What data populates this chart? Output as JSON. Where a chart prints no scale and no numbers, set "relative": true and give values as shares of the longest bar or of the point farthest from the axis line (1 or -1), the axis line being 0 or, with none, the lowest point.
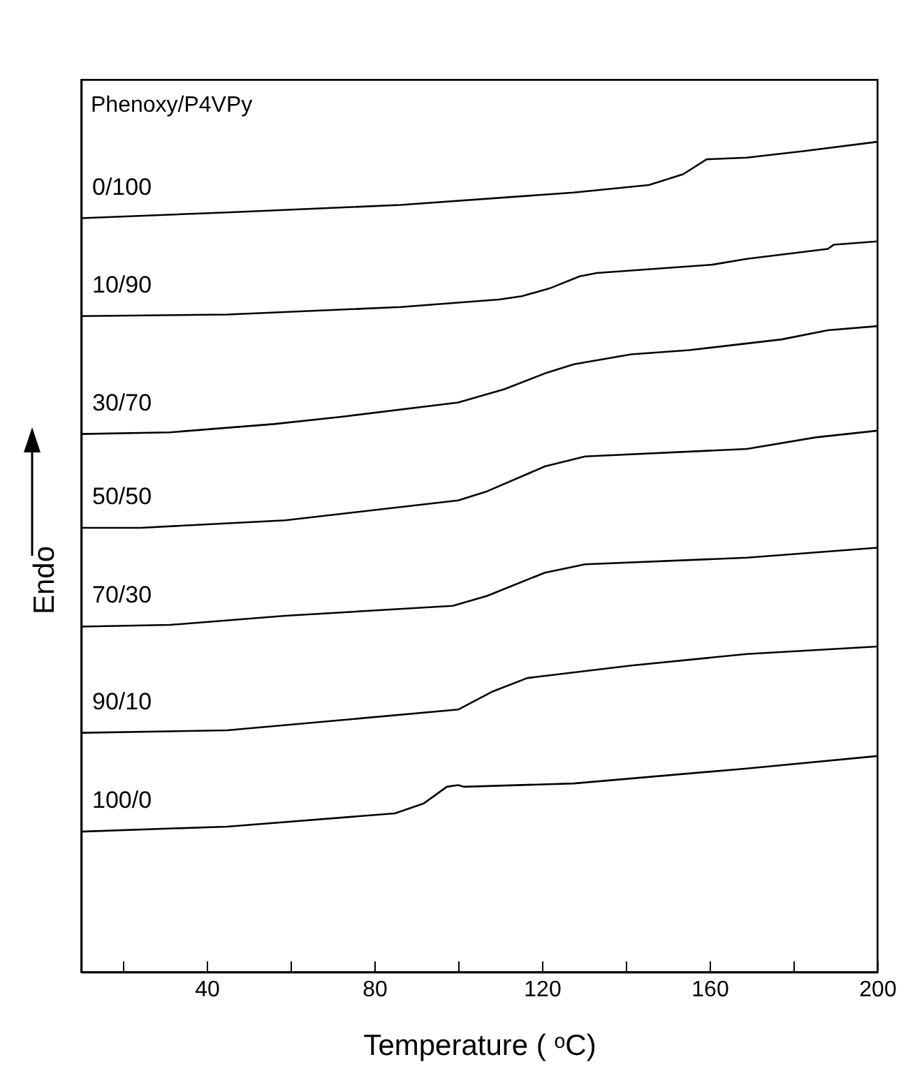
{
  "chart_data": {
    "type": "line",
    "relative": true,
    "xlabel": "Temperature ( ᵒC)",
    "ylabel": "Endo",
    "annotations": [
      "Phenoxy/P4VPy"
    ],
    "xlim": [
      10,
      200
    ],
    "xticks": [
      {
        "value": 20,
        "label": null
      },
      40,
      {
        "value": 60,
        "label": null
      },
      80,
      {
        "value": 100,
        "label": null
      },
      120,
      {
        "value": 140,
        "label": null
      },
      160,
      {
        "value": 180,
        "label": null
      },
      200
    ],
    "grid": false,
    "legend": false,
    "marker": "none",
    "line_style": "solid",
    "series": [
      {
        "name": "0/100",
        "color": "#000000",
        "x": [
          10,
          44.9,
          86.3,
          127.6,
          145.5,
          153.7,
          159.3,
          168.9,
          182.7,
          200
        ],
        "values": [
          0.908,
          0.915,
          0.924,
          0.939,
          0.948,
          0.961,
          0.979,
          0.981,
          0.989,
          1
        ]
      },
      {
        "name": "10/90",
        "color": "#000000",
        "x": [
          10,
          44.9,
          86.3,
          109.7,
          115.2,
          122.1,
          129,
          133.1,
          160.6,
          168.9,
          188.2,
          189.6,
          200
        ],
        "values": [
          0.79,
          0.792,
          0.801,
          0.81,
          0.814,
          0.824,
          0.838,
          0.842,
          0.852,
          0.859,
          0.871,
          0.876,
          0.88
        ]
      },
      {
        "name": "30/70",
        "color": "#000000",
        "x": [
          10,
          31.2,
          56,
          72.5,
          100,
          111,
          120.7,
          127.6,
          141.3,
          155.1,
          177.2,
          188.2,
          200
        ],
        "values": [
          0.648,
          0.65,
          0.66,
          0.669,
          0.686,
          0.702,
          0.721,
          0.732,
          0.744,
          0.749,
          0.762,
          0.773,
          0.778
        ]
      },
      {
        "name": "50/50",
        "color": "#000000",
        "x": [
          10,
          24.3,
          58.7,
          100,
          106.9,
          120.7,
          130.3,
          168.9,
          185.4,
          200
        ],
        "values": [
          0.535,
          0.535,
          0.544,
          0.568,
          0.579,
          0.609,
          0.621,
          0.63,
          0.644,
          0.652
        ]
      },
      {
        "name": "70/30",
        "color": "#000000",
        "x": [
          10,
          31.2,
          58.7,
          98.7,
          106.9,
          120.7,
          130.3,
          168.9,
          200
        ],
        "values": [
          0.416,
          0.418,
          0.429,
          0.441,
          0.453,
          0.481,
          0.491,
          0.499,
          0.511
        ]
      },
      {
        "name": "90/10",
        "color": "#000000",
        "x": [
          10,
          44.9,
          100,
          108.3,
          116.5,
          141.3,
          168.9,
          200
        ],
        "values": [
          0.288,
          0.291,
          0.316,
          0.338,
          0.354,
          0.369,
          0.383,
          0.392
        ]
      },
      {
        "name": "100/0",
        "color": "#000000",
        "x": [
          10,
          44.9,
          84.9,
          91.8,
          97.3,
          100,
          101.4,
          127.6,
          168.9,
          200
        ],
        "values": [
          0.169,
          0.175,
          0.191,
          0.203,
          0.223,
          0.225,
          0.223,
          0.227,
          0.245,
          0.26
        ]
      }
    ]
  }
}
